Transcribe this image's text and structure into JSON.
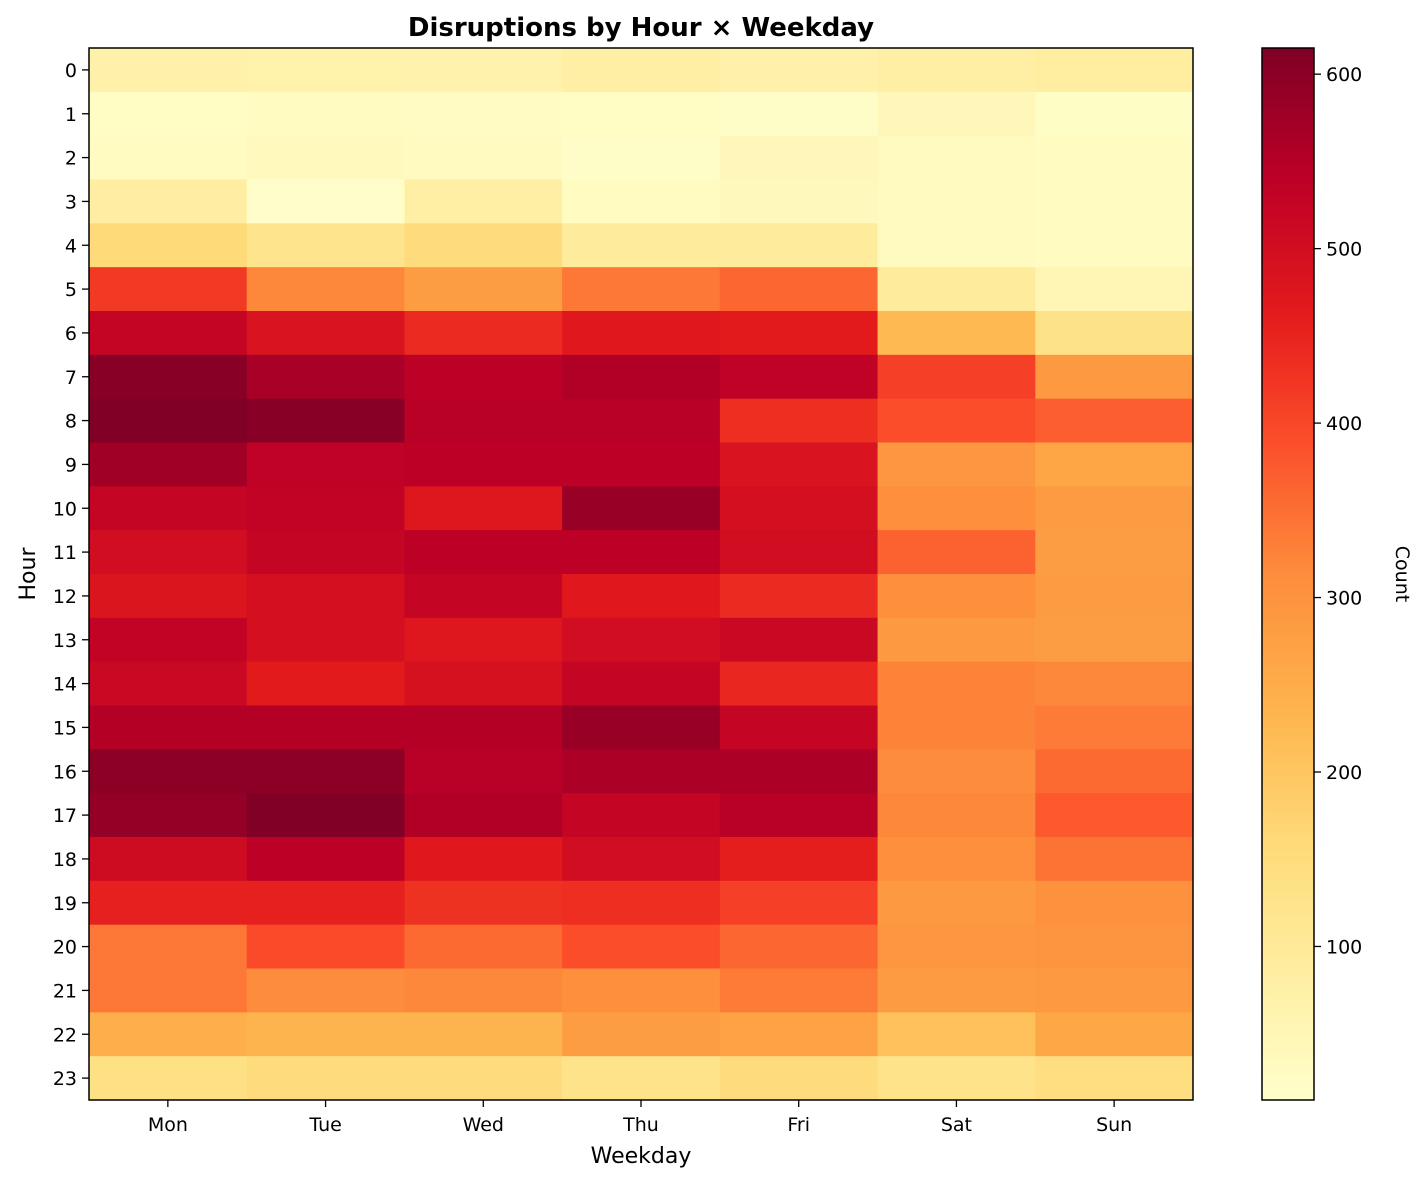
{
  "chart_data": {
    "type": "heatmap",
    "title": "Disruptions by Hour × Weekday",
    "xlabel": "Weekday",
    "ylabel": "Hour",
    "colorbar_label": "Count",
    "colormap": "YlOrRd",
    "x_categories": [
      "Mon",
      "Tue",
      "Wed",
      "Thu",
      "Fri",
      "Sat",
      "Sun"
    ],
    "y_categories": [
      "0",
      "1",
      "2",
      "3",
      "4",
      "5",
      "6",
      "7",
      "8",
      "9",
      "10",
      "11",
      "12",
      "13",
      "14",
      "15",
      "16",
      "17",
      "18",
      "19",
      "20",
      "21",
      "22",
      "23"
    ],
    "values": [
      [
        70,
        68,
        65,
        78,
        70,
        80,
        88
      ],
      [
        25,
        30,
        28,
        25,
        20,
        45,
        22
      ],
      [
        30,
        38,
        32,
        20,
        45,
        35,
        30
      ],
      [
        85,
        15,
        80,
        30,
        40,
        35,
        30
      ],
      [
        160,
        120,
        150,
        95,
        95,
        35,
        30
      ],
      [
        420,
        320,
        280,
        340,
        360,
        95,
        50
      ],
      [
        525,
        485,
        440,
        470,
        465,
        225,
        130
      ],
      [
        605,
        565,
        540,
        555,
        535,
        410,
        290
      ],
      [
        615,
        605,
        545,
        545,
        435,
        390,
        370
      ],
      [
        575,
        535,
        540,
        540,
        485,
        295,
        265
      ],
      [
        525,
        530,
        475,
        585,
        495,
        310,
        285
      ],
      [
        500,
        525,
        540,
        540,
        500,
        365,
        280
      ],
      [
        480,
        495,
        525,
        470,
        440,
        310,
        285
      ],
      [
        530,
        495,
        475,
        500,
        515,
        290,
        280
      ],
      [
        515,
        465,
        490,
        525,
        445,
        325,
        320
      ],
      [
        550,
        550,
        550,
        585,
        525,
        325,
        335
      ],
      [
        600,
        600,
        545,
        560,
        560,
        315,
        355
      ],
      [
        590,
        615,
        555,
        525,
        545,
        320,
        375
      ],
      [
        505,
        540,
        470,
        500,
        460,
        310,
        345
      ],
      [
        455,
        455,
        430,
        435,
        410,
        290,
        305
      ],
      [
        340,
        395,
        355,
        390,
        360,
        295,
        300
      ],
      [
        340,
        315,
        320,
        310,
        335,
        285,
        290
      ],
      [
        245,
        235,
        235,
        280,
        270,
        210,
        260
      ],
      [
        135,
        150,
        150,
        125,
        150,
        125,
        145
      ]
    ],
    "colorbar_range": [
      12,
      615
    ],
    "colorbar_ticks": [
      100,
      200,
      300,
      400,
      500,
      600
    ],
    "grid": false
  }
}
